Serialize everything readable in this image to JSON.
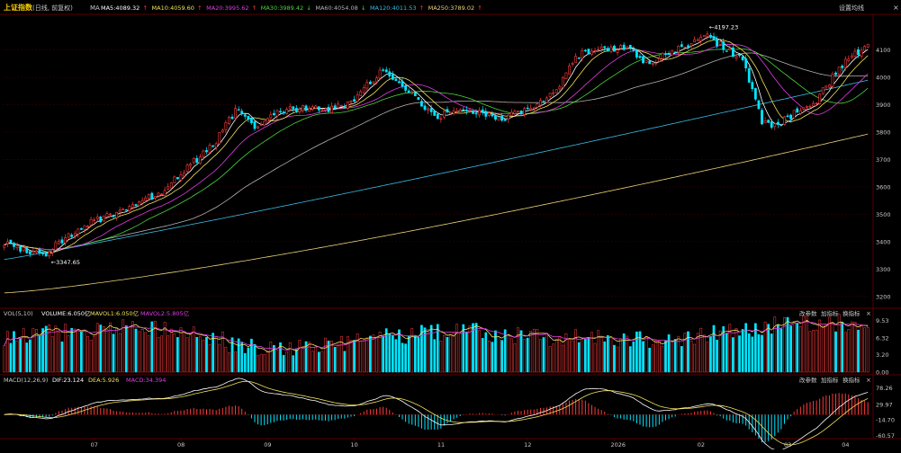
{
  "header": {
    "title": "上证指数",
    "subtitle": "(日线, 前复权)",
    "ma_tag": "MA",
    "ma_values": [
      {
        "label": "MA5:4089.32",
        "arrow": "up",
        "color": "#ffffff"
      },
      {
        "label": "MA10:4059.60",
        "arrow": "up",
        "color": "#f2e15b"
      },
      {
        "label": "MA20:3995.62",
        "arrow": "up",
        "color": "#e03ce3"
      },
      {
        "label": "MA30:3989.42",
        "arrow": "down",
        "color": "#49d63c"
      },
      {
        "label": "MA60:4054.08",
        "arrow": "down",
        "color": "#b3b3b3"
      },
      {
        "label": "MA120:4011.53",
        "arrow": "up",
        "color": "#39b9e2"
      },
      {
        "label": "MA250:3789.02",
        "arrow": "up",
        "color": "#ecd27a"
      }
    ],
    "settings_label": "设置均线"
  },
  "volume_header": {
    "title": "VOL(5,10)",
    "volume": "VOLUME:6.050亿",
    "mavol1": "MAVOL1:6.050亿",
    "mavol2": "MAVOL2:5.805亿",
    "buttons": [
      "改参数",
      "加指标",
      "换指标"
    ]
  },
  "macd_header": {
    "title": "MACD(12,26,9)",
    "dif": "DIF:23.124",
    "dea": "DEA:5.926",
    "macd": "MACD:34.394",
    "buttons": [
      "改参数",
      "加指标",
      "换指标"
    ]
  },
  "colors": {
    "up": "#ff3b3b",
    "down": "#00e5ff",
    "ma5": "#ffffff",
    "ma10": "#f2e15b",
    "ma20": "#e03ce3",
    "ma30": "#49d63c",
    "ma60": "#b3b3b3",
    "ma120": "#39b9e2",
    "ma250": "#ecd27a",
    "grid": "#3a0000",
    "axis_text": "#c8c8c8"
  },
  "chart_data": [
    {
      "type": "candlestick",
      "title": "上证指数",
      "ylim": [
        3160,
        4230
      ],
      "y_ticks": [
        3200,
        3300,
        3400,
        3500,
        3600,
        3700,
        3800,
        3900,
        4000,
        4100
      ],
      "annotations": [
        {
          "text": "4197.23",
          "kind": "high"
        },
        {
          "text": "3347.65",
          "kind": "low"
        }
      ],
      "keypoints": [
        {
          "i": 0,
          "c": 3395
        },
        {
          "i": 12,
          "c": 3348
        },
        {
          "i": 24,
          "c": 3455
        },
        {
          "i": 36,
          "c": 3510
        },
        {
          "i": 50,
          "c": 3590
        },
        {
          "i": 66,
          "c": 3770
        },
        {
          "i": 72,
          "c": 3880
        },
        {
          "i": 78,
          "c": 3820
        },
        {
          "i": 84,
          "c": 3870
        },
        {
          "i": 90,
          "c": 3890
        },
        {
          "i": 100,
          "c": 3880
        },
        {
          "i": 108,
          "c": 3910
        },
        {
          "i": 118,
          "c": 4030
        },
        {
          "i": 128,
          "c": 3930
        },
        {
          "i": 134,
          "c": 3850
        },
        {
          "i": 142,
          "c": 3890
        },
        {
          "i": 150,
          "c": 3870
        },
        {
          "i": 156,
          "c": 3850
        },
        {
          "i": 164,
          "c": 3890
        },
        {
          "i": 172,
          "c": 3950
        },
        {
          "i": 178,
          "c": 4080
        },
        {
          "i": 186,
          "c": 4100
        },
        {
          "i": 194,
          "c": 4110
        },
        {
          "i": 200,
          "c": 4050
        },
        {
          "i": 208,
          "c": 4090
        },
        {
          "i": 214,
          "c": 4130
        },
        {
          "i": 218,
          "c": 4160
        },
        {
          "i": 224,
          "c": 4110
        },
        {
          "i": 230,
          "c": 4060
        },
        {
          "i": 236,
          "c": 3840
        },
        {
          "i": 240,
          "c": 3820
        },
        {
          "i": 246,
          "c": 3870
        },
        {
          "i": 252,
          "c": 3900
        },
        {
          "i": 258,
          "c": 4000
        },
        {
          "i": 264,
          "c": 4080
        },
        {
          "i": 268,
          "c": 4110
        }
      ],
      "x_labels": [
        "07",
        "08",
        "09",
        "10",
        "11",
        "12",
        "2026",
        "02",
        "03",
        "04"
      ]
    },
    {
      "type": "bar",
      "title": "VOL(5,10)",
      "y_ticks": [
        "9.53",
        "6.32",
        "3.20",
        "0.00"
      ],
      "ylim": [
        0,
        9.6
      ]
    },
    {
      "type": "bar",
      "title": "MACD(12,26,9)",
      "y_ticks": [
        "78.26",
        "29.97",
        "-14.70",
        "-60.57"
      ],
      "ylim": [
        -65,
        85
      ]
    }
  ]
}
